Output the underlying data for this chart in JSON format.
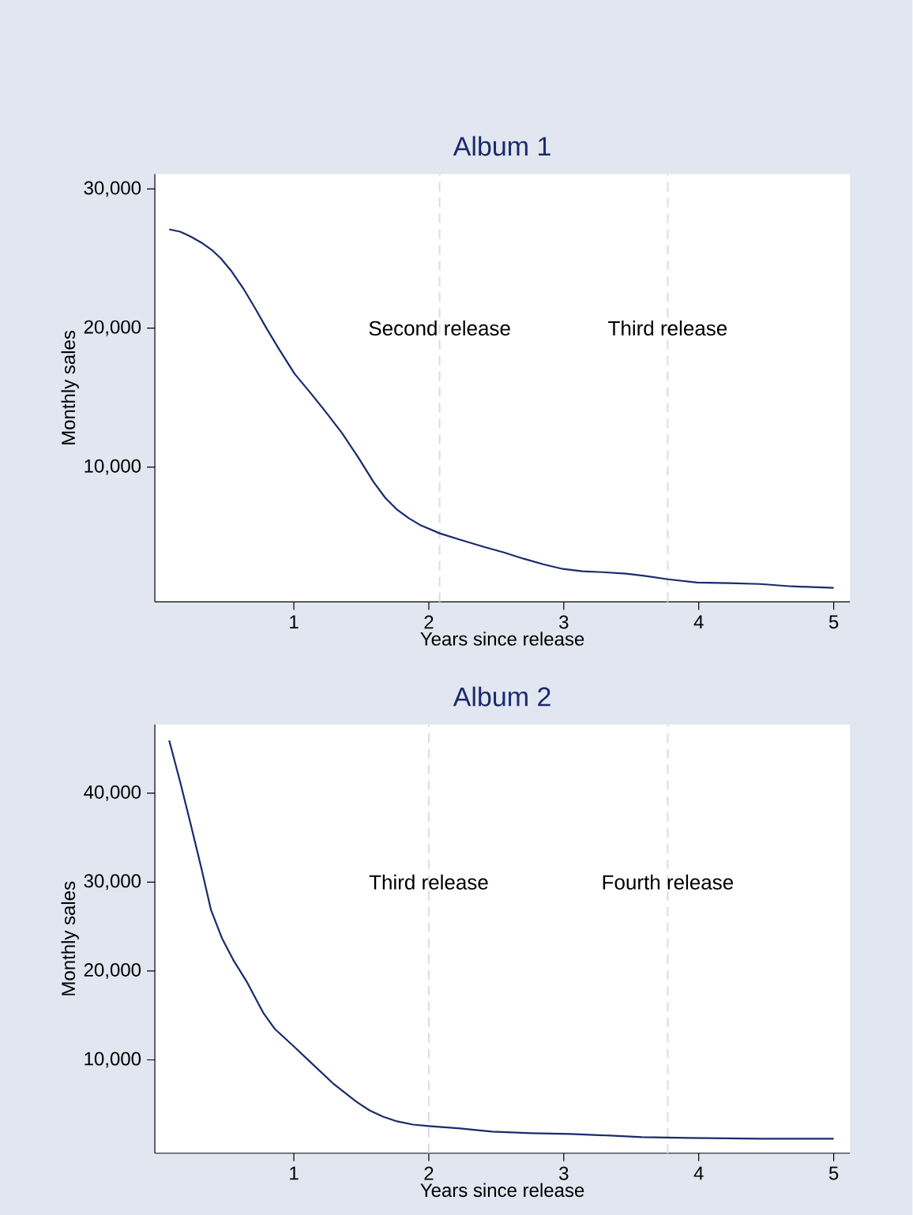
{
  "chart_data": [
    {
      "type": "line",
      "title": "Album 1",
      "xlabel": "Years since release",
      "ylabel": "Monthly sales",
      "xlim": [
        -0.03,
        5.12
      ],
      "ylim": [
        300,
        31080
      ],
      "xticks": [
        1,
        2,
        3,
        4,
        5
      ],
      "yticks": [
        {
          "value": 10000,
          "label": "10,000"
        },
        {
          "value": 20000,
          "label": "20,000"
        },
        {
          "value": 30000,
          "label": "30,000"
        }
      ],
      "x": [
        0.076,
        0.158,
        0.234,
        0.316,
        0.398,
        0.46,
        0.538,
        0.626,
        0.713,
        0.8,
        0.888,
        0.947,
        1.006,
        1.123,
        1.24,
        1.357,
        1.474,
        1.591,
        1.678,
        1.766,
        1.854,
        1.942,
        2.082,
        2.234,
        2.409,
        2.556,
        2.702,
        2.848,
        2.994,
        3.14,
        3.287,
        3.462,
        3.608,
        3.772,
        3.988,
        4.222,
        4.456,
        4.69,
        5.0
      ],
      "series": [
        {
          "color": "#1a2a6c",
          "values": [
            27100,
            26930,
            26590,
            26140,
            25570,
            25000,
            24090,
            22840,
            21420,
            19940,
            18520,
            17610,
            16700,
            15340,
            13920,
            12440,
            10740,
            8920,
            7780,
            6930,
            6310,
            5800,
            5230,
            4770,
            4260,
            3860,
            3410,
            3010,
            2670,
            2500,
            2440,
            2330,
            2160,
            1930,
            1700,
            1650,
            1590,
            1420,
            1310
          ]
        }
      ],
      "ref_lines": [
        {
          "axis": "x",
          "value": 2.08,
          "color": "#d8dde8",
          "line_style": "dashed"
        },
        {
          "axis": "x",
          "value": 3.77,
          "color": "#d8dde8",
          "line_style": "dashed"
        }
      ],
      "annotations": [
        {
          "text": "Second release",
          "x": 2.08,
          "y": 20000
        },
        {
          "text": "Third release",
          "x": 3.77,
          "y": 20000
        }
      ]
    },
    {
      "type": "line",
      "title": "Album 2",
      "xlabel": "Years since release",
      "ylabel": "Monthly sales",
      "xlim": [
        -0.03,
        5.12
      ],
      "ylim": [
        -500,
        47720
      ],
      "xticks": [
        1,
        2,
        3,
        4,
        5
      ],
      "yticks": [
        {
          "value": 10000,
          "label": "10,000"
        },
        {
          "value": 20000,
          "label": "20,000"
        },
        {
          "value": 30000,
          "label": "30,000"
        },
        {
          "value": 40000,
          "label": "40,000"
        }
      ],
      "x": [
        0.076,
        0.158,
        0.234,
        0.316,
        0.386,
        0.468,
        0.55,
        0.655,
        0.772,
        0.86,
        1.0,
        1.123,
        1.298,
        1.462,
        1.561,
        1.661,
        1.766,
        1.883,
        2.0,
        2.234,
        2.468,
        2.76,
        3.053,
        3.345,
        3.579,
        3.93,
        4.456,
        5.0
      ],
      "series": [
        {
          "color": "#1a2a6c",
          "values": [
            45940,
            41240,
            36600,
            31470,
            26860,
            23660,
            21270,
            18690,
            15320,
            13460,
            11510,
            9740,
            7250,
            5300,
            4320,
            3610,
            3080,
            2720,
            2550,
            2280,
            1930,
            1750,
            1660,
            1480,
            1310,
            1220,
            1130,
            1130
          ]
        }
      ],
      "ref_lines": [
        {
          "axis": "x",
          "value": 2.0,
          "color": "#d8dde8",
          "line_style": "dashed"
        },
        {
          "axis": "x",
          "value": 3.77,
          "color": "#d8dde8",
          "line_style": "dashed"
        }
      ],
      "annotations": [
        {
          "text": "Third release",
          "x": 2.0,
          "y": 30000
        },
        {
          "text": "Fourth release",
          "x": 3.77,
          "y": 30000
        }
      ]
    }
  ]
}
